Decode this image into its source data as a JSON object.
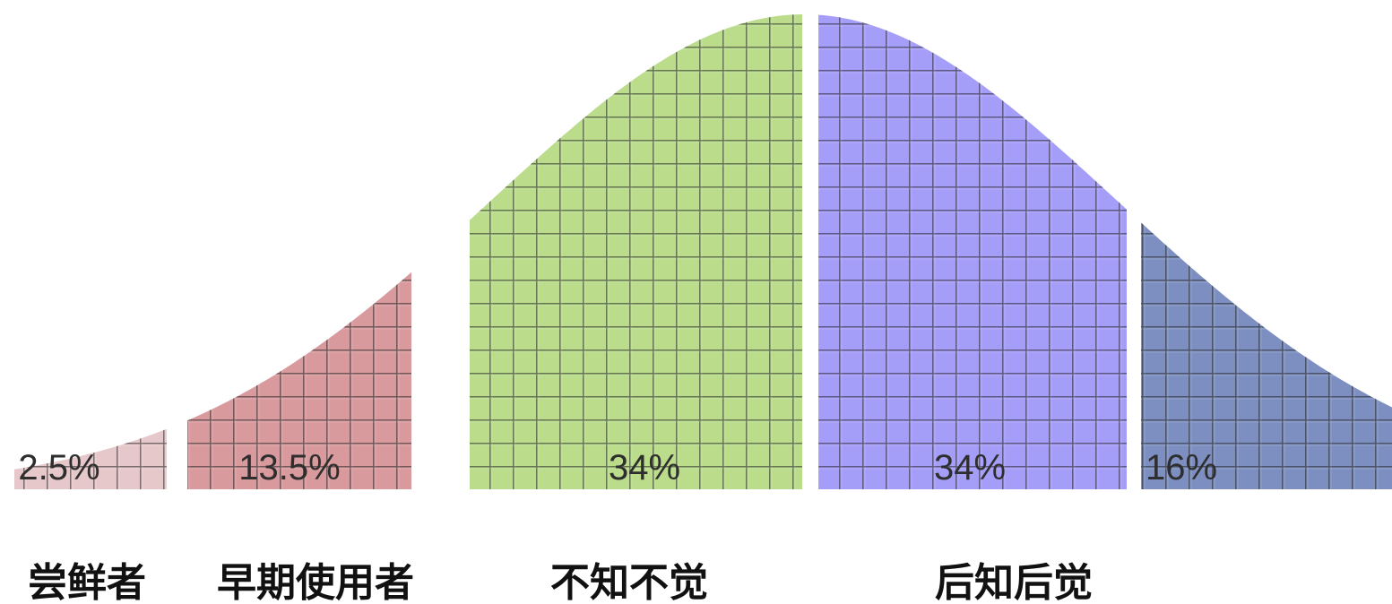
{
  "chart_data": {
    "type": "area",
    "title": "",
    "xlabel": "",
    "ylabel": "",
    "grid": false,
    "legend": "none",
    "segments": [
      {
        "value_percent": 2.5,
        "value_label": "2.5%",
        "category_label": "尝鲜者",
        "color": "#e4c2c4"
      },
      {
        "value_percent": 13.5,
        "value_label": "13.5%",
        "category_label": "早期使用者",
        "color": "#d48e92"
      },
      {
        "value_percent": 34,
        "value_label": "34%",
        "category_label": "不知不觉",
        "color": "#b2d87e"
      },
      {
        "value_percent": 34,
        "value_label": "34%",
        "category_label": "后知后觉",
        "color": "#9b93f7"
      },
      {
        "value_percent": 16,
        "value_label": "16%",
        "category_label": "",
        "color": "#6e82ba"
      }
    ]
  }
}
